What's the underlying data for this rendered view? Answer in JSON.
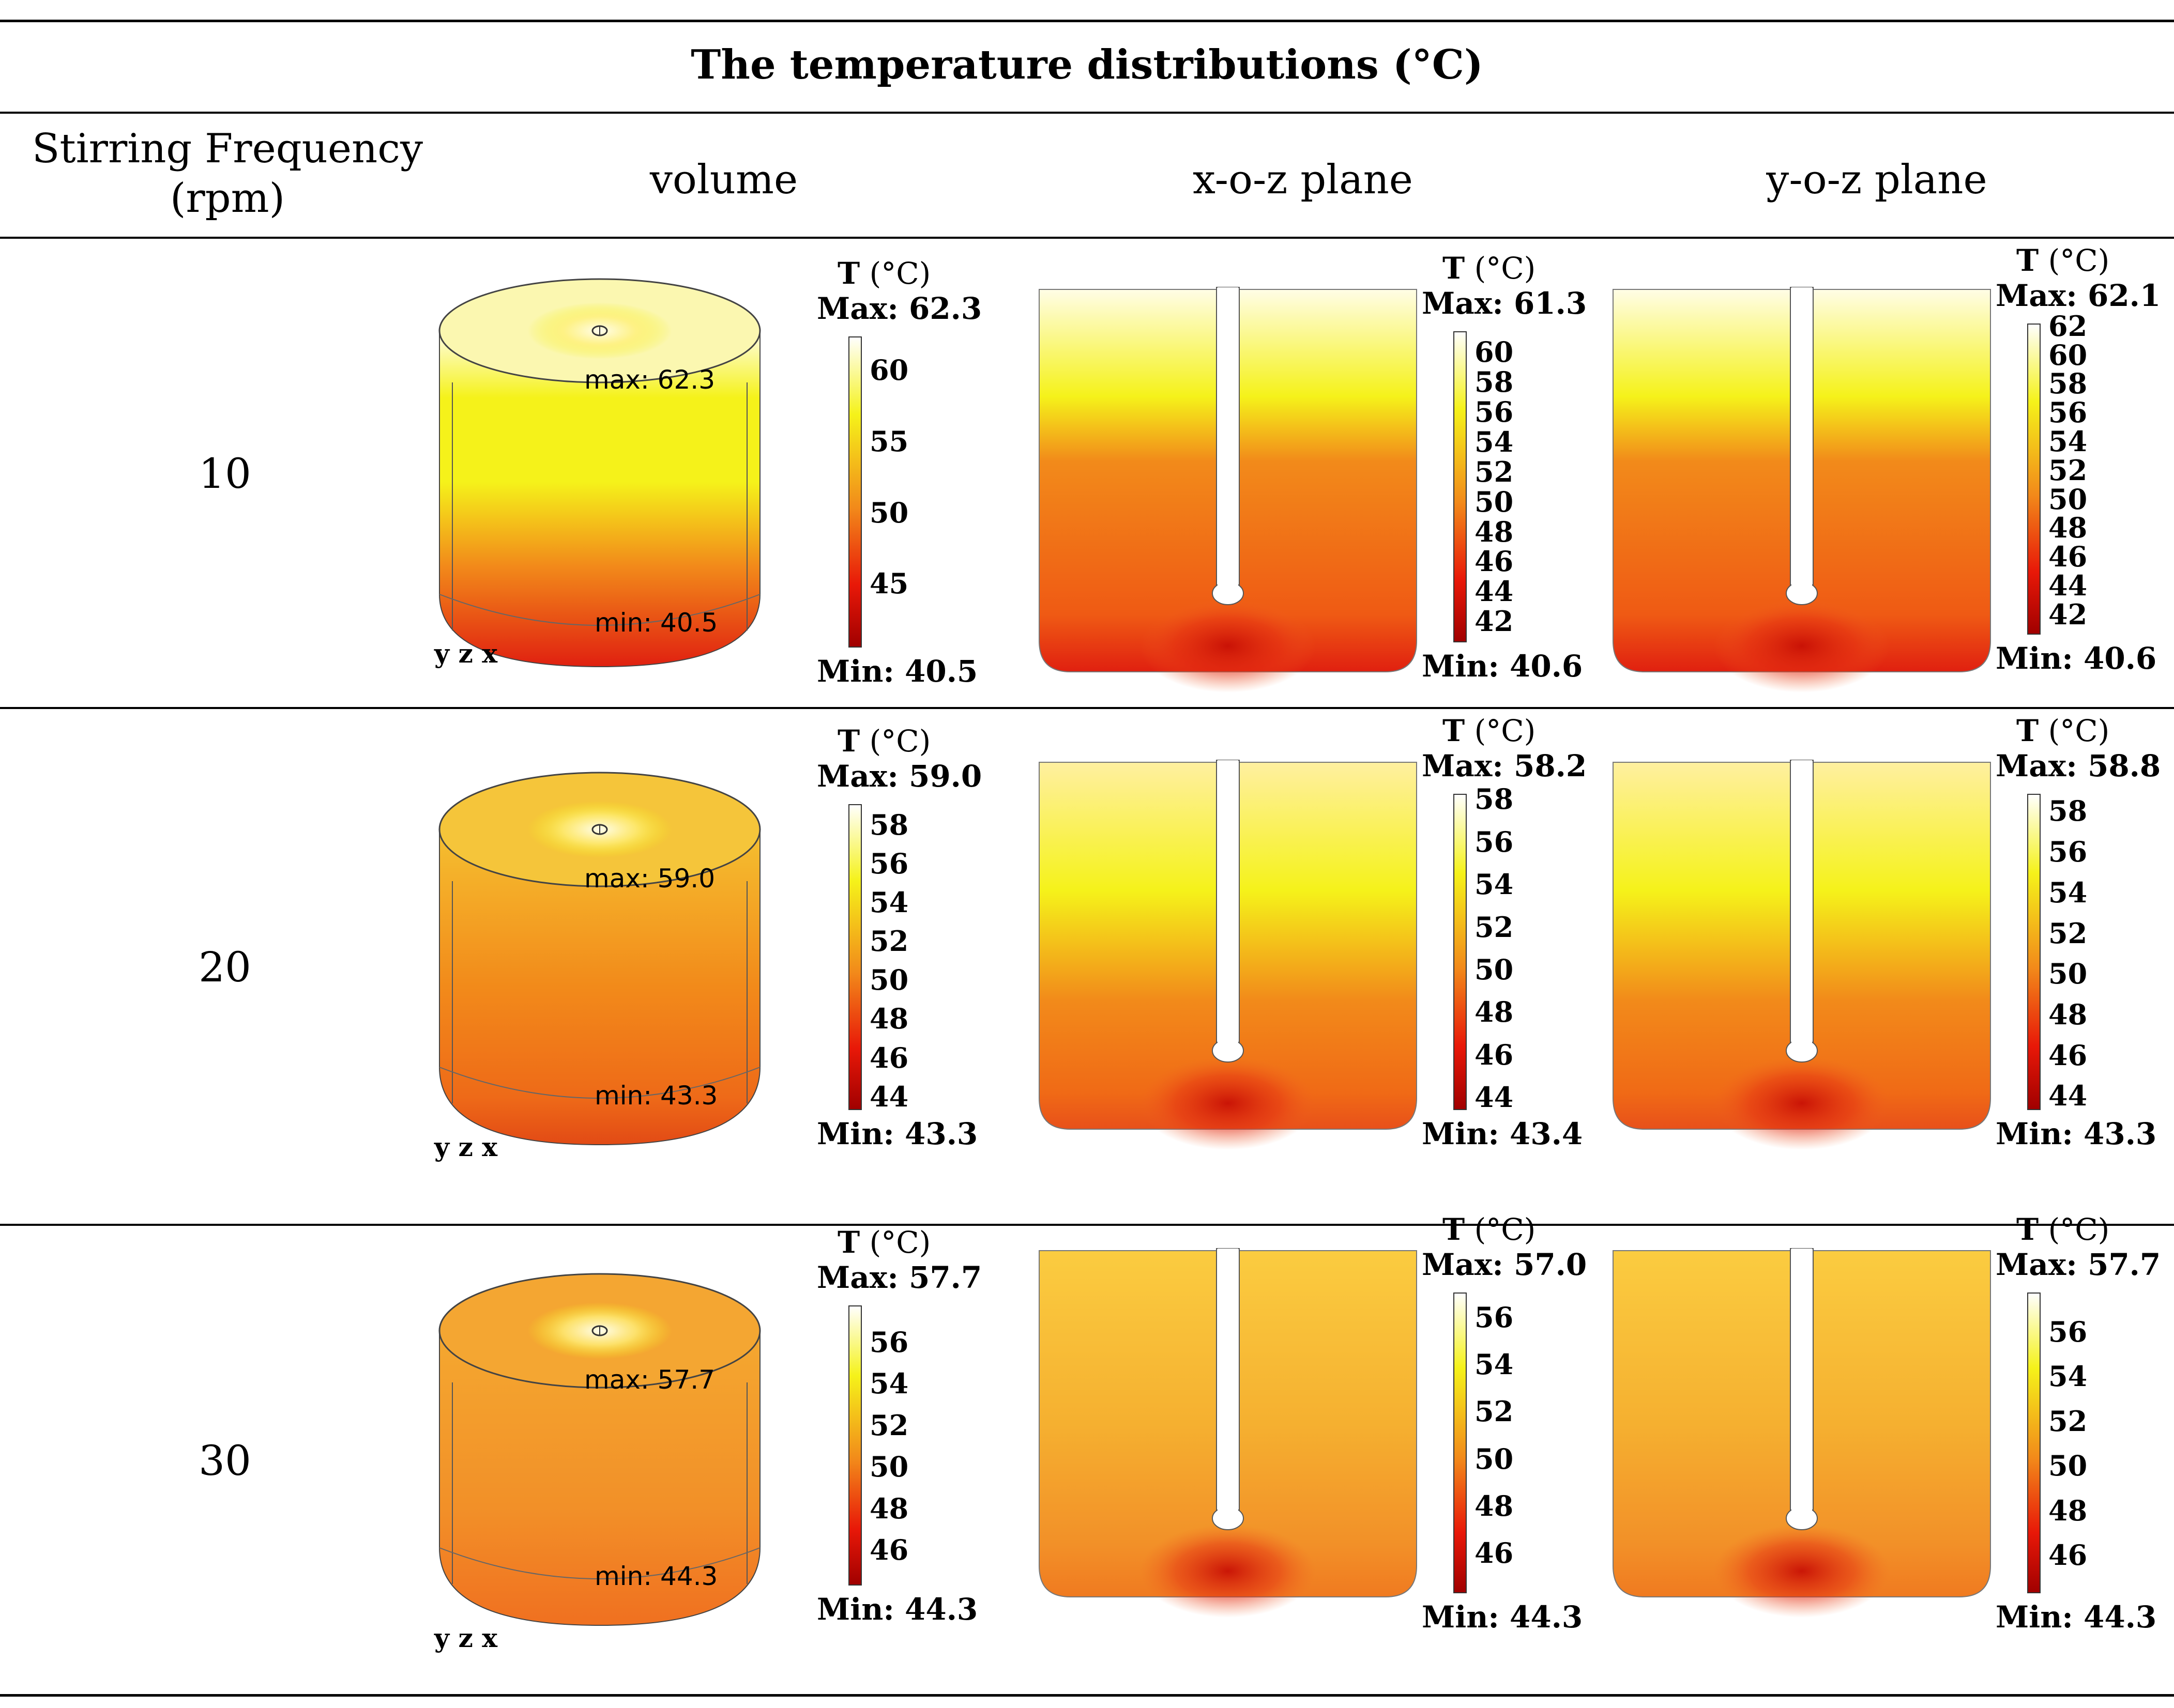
{
  "title": "The temperature distributions (°C)",
  "headers": {
    "stirring": "Stirring Frequency (rpm)",
    "volume": "volume",
    "xoz": "x-o-z plane",
    "yoz": "y-o-z plane"
  },
  "legend": {
    "T_label": "T",
    "T_unit": "(°C)",
    "max_prefix": "Max:",
    "min_prefix": "Min:"
  },
  "axis_triad": "y z x",
  "colors": {
    "hot": "#fffde6",
    "yellow": "#f5f21a",
    "orange": "#f28a1a",
    "red": "#e02010",
    "dark_red": "#a00000"
  },
  "rows": [
    {
      "rpm": "10",
      "volume": {
        "max": "62.3",
        "min": "40.5",
        "note_max": "max: 62.3",
        "note_min": "min: 40.5",
        "ticks": [
          "60",
          "55",
          "50",
          "45"
        ],
        "range": [
          40.5,
          62.3
        ]
      },
      "xoz": {
        "max": "61.3",
        "min": "40.6",
        "ticks": [
          "60",
          "58",
          "56",
          "54",
          "52",
          "50",
          "48",
          "46",
          "44",
          "42"
        ],
        "range": [
          40.6,
          61.3
        ]
      },
      "yoz": {
        "max": "62.1",
        "min": "40.6",
        "ticks": [
          "62",
          "60",
          "58",
          "56",
          "54",
          "52",
          "50",
          "48",
          "46",
          "44",
          "42"
        ],
        "range": [
          40.6,
          62.1
        ]
      }
    },
    {
      "rpm": "20",
      "volume": {
        "max": "59.0",
        "min": "43.3",
        "note_max": "max: 59.0",
        "note_min": "min: 43.3",
        "ticks": [
          "58",
          "56",
          "54",
          "52",
          "50",
          "48",
          "46",
          "44"
        ],
        "range": [
          43.3,
          59.0
        ]
      },
      "xoz": {
        "max": "58.2",
        "min": "43.4",
        "ticks": [
          "58",
          "56",
          "54",
          "52",
          "50",
          "48",
          "46",
          "44"
        ],
        "range": [
          43.4,
          58.2
        ]
      },
      "yoz": {
        "max": "58.8",
        "min": "43.3",
        "ticks": [
          "58",
          "56",
          "54",
          "52",
          "50",
          "48",
          "46",
          "44"
        ],
        "range": [
          43.3,
          58.8
        ]
      }
    },
    {
      "rpm": "30",
      "volume": {
        "max": "57.7",
        "min": "44.3",
        "note_max": "max: 57.7",
        "note_min": "min: 44.3",
        "ticks": [
          "56",
          "54",
          "52",
          "50",
          "48",
          "46"
        ],
        "range": [
          44.3,
          57.7
        ]
      },
      "xoz": {
        "max": "57.0",
        "min": "44.3",
        "ticks": [
          "56",
          "54",
          "52",
          "50",
          "48",
          "46"
        ],
        "range": [
          44.3,
          57.0
        ]
      },
      "yoz": {
        "max": "57.7",
        "min": "44.3",
        "ticks": [
          "56",
          "54",
          "52",
          "50",
          "48",
          "46"
        ],
        "range": [
          44.3,
          57.7
        ]
      }
    }
  ]
}
